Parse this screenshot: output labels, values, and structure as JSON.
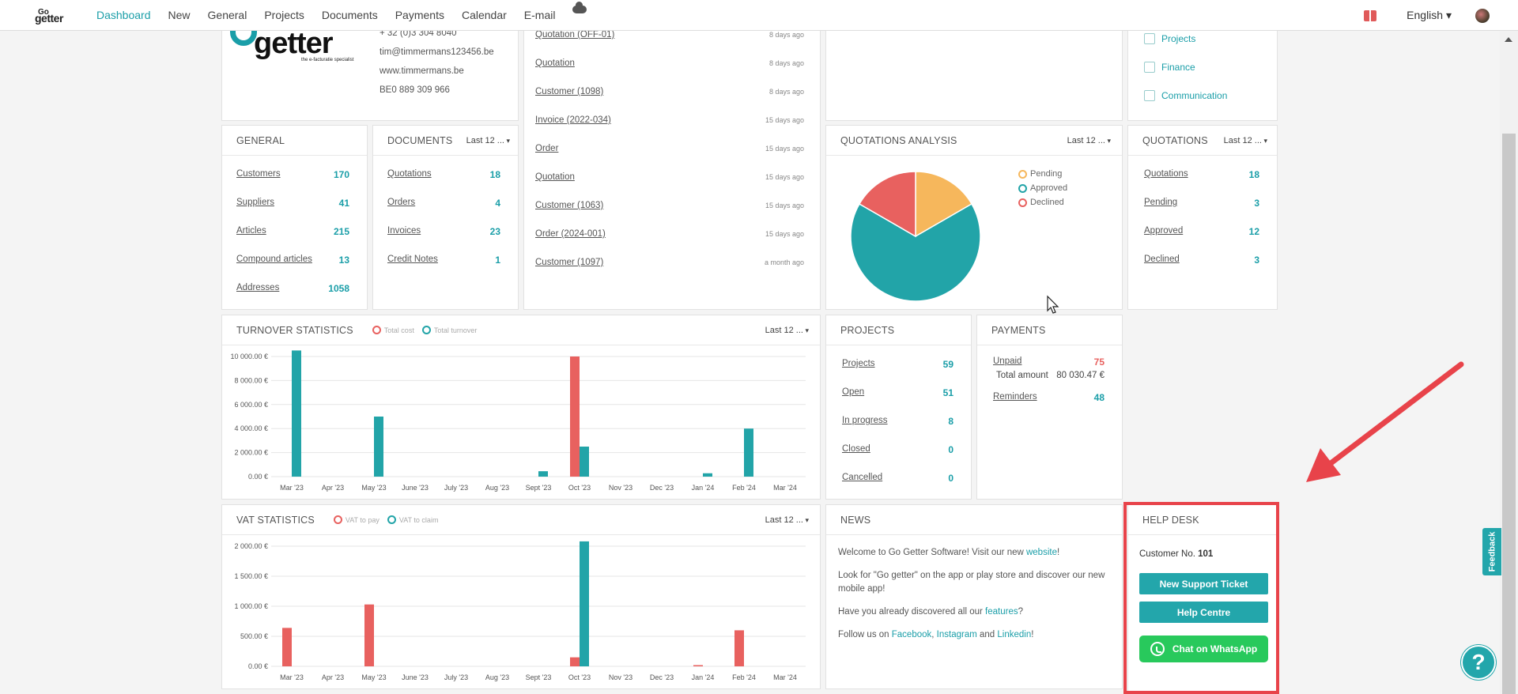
{
  "nav": {
    "logo_top": "Go",
    "logo_bottom": "getter",
    "menu": [
      "Dashboard",
      "New",
      "General",
      "Projects",
      "Documents",
      "Payments",
      "Calendar",
      "E-mail"
    ],
    "language": "English"
  },
  "company": {
    "logo_text": "getter",
    "logo_tagline": "the e-facturatie specialist",
    "phone": "+ 32 (0)3 304 8040",
    "email": "tim@timmermans123456.be",
    "website": "www.timmermans.be",
    "vat": "BE0 889 309 966"
  },
  "recent": [
    {
      "label": "Quotation (OFF-01)",
      "ago": "8 days ago"
    },
    {
      "label": "Quotation",
      "ago": "8 days ago"
    },
    {
      "label": "Customer (1098)",
      "ago": "8 days ago"
    },
    {
      "label": "Invoice (2022-034)",
      "ago": "15 days ago"
    },
    {
      "label": "Order",
      "ago": "15 days ago"
    },
    {
      "label": "Quotation",
      "ago": "15 days ago"
    },
    {
      "label": "Customer (1063)",
      "ago": "15 days ago"
    },
    {
      "label": "Order (2024-001)",
      "ago": "15 days ago"
    },
    {
      "label": "Customer (1097)",
      "ago": "a month ago"
    }
  ],
  "apps": [
    "Projects",
    "Finance",
    "Communication"
  ],
  "general": {
    "title": "GENERAL",
    "rows": [
      {
        "label": "Customers",
        "value": "170"
      },
      {
        "label": "Suppliers",
        "value": "41"
      },
      {
        "label": "Articles",
        "value": "215"
      },
      {
        "label": "Compound articles",
        "value": "13"
      },
      {
        "label": "Addresses",
        "value": "1058"
      }
    ]
  },
  "documents": {
    "title": "DOCUMENTS",
    "filter": "Last 12 ...",
    "rows": [
      {
        "label": "Quotations",
        "value": "18"
      },
      {
        "label": "Orders",
        "value": "4"
      },
      {
        "label": "Invoices",
        "value": "23"
      },
      {
        "label": "Credit Notes",
        "value": "1"
      }
    ]
  },
  "quotations_analysis": {
    "title": "QUOTATIONS ANALYSIS",
    "filter": "Last 12 ...",
    "legend": [
      "Pending",
      "Approved",
      "Declined"
    ]
  },
  "quotations": {
    "title": "QUOTATIONS",
    "filter": "Last 12 ...",
    "rows": [
      {
        "label": "Quotations",
        "value": "18"
      },
      {
        "label": "Pending",
        "value": "3"
      },
      {
        "label": "Approved",
        "value": "12"
      },
      {
        "label": "Declined",
        "value": "3"
      }
    ]
  },
  "turnover": {
    "title": "TURNOVER STATISTICS",
    "filter": "Last 12 ...",
    "legend": [
      "Total cost",
      "Total turnover"
    ]
  },
  "projects": {
    "title": "PROJECTS",
    "rows": [
      {
        "label": "Projects",
        "value": "59"
      },
      {
        "label": "Open",
        "value": "51"
      },
      {
        "label": "In progress",
        "value": "8"
      },
      {
        "label": "Closed",
        "value": "0"
      },
      {
        "label": "Cancelled",
        "value": "0"
      }
    ]
  },
  "payments": {
    "title": "PAYMENTS",
    "unpaid_label": "Unpaid",
    "unpaid_value": "75",
    "total_label": "Total amount",
    "total_value": "80 030.47 €",
    "reminders_label": "Reminders",
    "reminders_value": "48"
  },
  "vat": {
    "title": "VAT STATISTICS",
    "filter": "Last 12 ...",
    "legend": [
      "VAT to pay",
      "VAT to claim"
    ]
  },
  "news": {
    "title": "NEWS",
    "p1_a": "Welcome to Go Getter Software! Visit our new ",
    "p1_link": "website",
    "p1_b": "!",
    "p2": "Look for \"Go getter\" on the app or play store and discover our new mobile app!",
    "p3_a": "Have you already discovered all our ",
    "p3_link": "features",
    "p3_b": "?",
    "p4_a": "Follow us on ",
    "p4_fb": "Facebook",
    "p4_sep1": ", ",
    "p4_ig": "Instagram",
    "p4_and": " and ",
    "p4_li": "Linkedin",
    "p4_b": "!"
  },
  "helpdesk": {
    "title": "HELP DESK",
    "customer_label": "Customer No.",
    "customer_no": "101",
    "ticket_button": "New Support Ticket",
    "centre_button": "Help Centre",
    "whatsapp_button": "Chat on WhatsApp"
  },
  "feedback_label": "Feedback",
  "help_icon": "?",
  "colors": {
    "accent": "#1a9ea8",
    "cost": "#e8615f",
    "turnover": "#22a4a8",
    "pending": "#f6b75c",
    "whatsapp": "#28c95c",
    "highlight": "#e8434a"
  },
  "chart_data": [
    {
      "type": "pie",
      "title": "QUOTATIONS ANALYSIS",
      "categories": [
        "Pending",
        "Approved",
        "Declined"
      ],
      "values": [
        3,
        12,
        3
      ],
      "colors": [
        "#f6b75c",
        "#22a4a8",
        "#e8615f"
      ]
    },
    {
      "type": "bar",
      "title": "TURNOVER STATISTICS",
      "categories": [
        "Mar '23",
        "Apr '23",
        "May '23",
        "June '23",
        "July '23",
        "Aug '23",
        "Sept '23",
        "Oct '23",
        "Nov '23",
        "Dec '23",
        "Jan '24",
        "Feb '24",
        "Mar '24"
      ],
      "ylim": [
        0,
        10000
      ],
      "yticks": [
        "0.00 €",
        "2 000.00 €",
        "4 000.00 €",
        "6 000.00 €",
        "8 000.00 €",
        "10 000.00 €"
      ],
      "series": [
        {
          "name": "Total cost",
          "values": [
            0,
            0,
            0,
            0,
            0,
            0,
            0,
            10000,
            0,
            0,
            0,
            0,
            0
          ]
        },
        {
          "name": "Total turnover",
          "values": [
            10500,
            0,
            5000,
            0,
            0,
            0,
            450,
            2500,
            0,
            0,
            280,
            4000,
            0
          ]
        }
      ]
    },
    {
      "type": "bar",
      "title": "VAT STATISTICS",
      "categories": [
        "Mar '23",
        "Apr '23",
        "May '23",
        "June '23",
        "July '23",
        "Aug '23",
        "Sept '23",
        "Oct '23",
        "Nov '23",
        "Dec '23",
        "Jan '24",
        "Feb '24",
        "Mar '24"
      ],
      "ylim": [
        0,
        2000
      ],
      "yticks": [
        "0.00 €",
        "500.00 €",
        "1 000.00 €",
        "1 500.00 €",
        "2 000.00 €"
      ],
      "series": [
        {
          "name": "VAT to pay",
          "values": [
            640,
            0,
            1030,
            0,
            0,
            0,
            0,
            150,
            0,
            0,
            20,
            600,
            0
          ]
        },
        {
          "name": "VAT to claim",
          "values": [
            0,
            0,
            0,
            0,
            0,
            0,
            0,
            2080,
            0,
            0,
            0,
            0,
            0
          ]
        }
      ]
    }
  ]
}
